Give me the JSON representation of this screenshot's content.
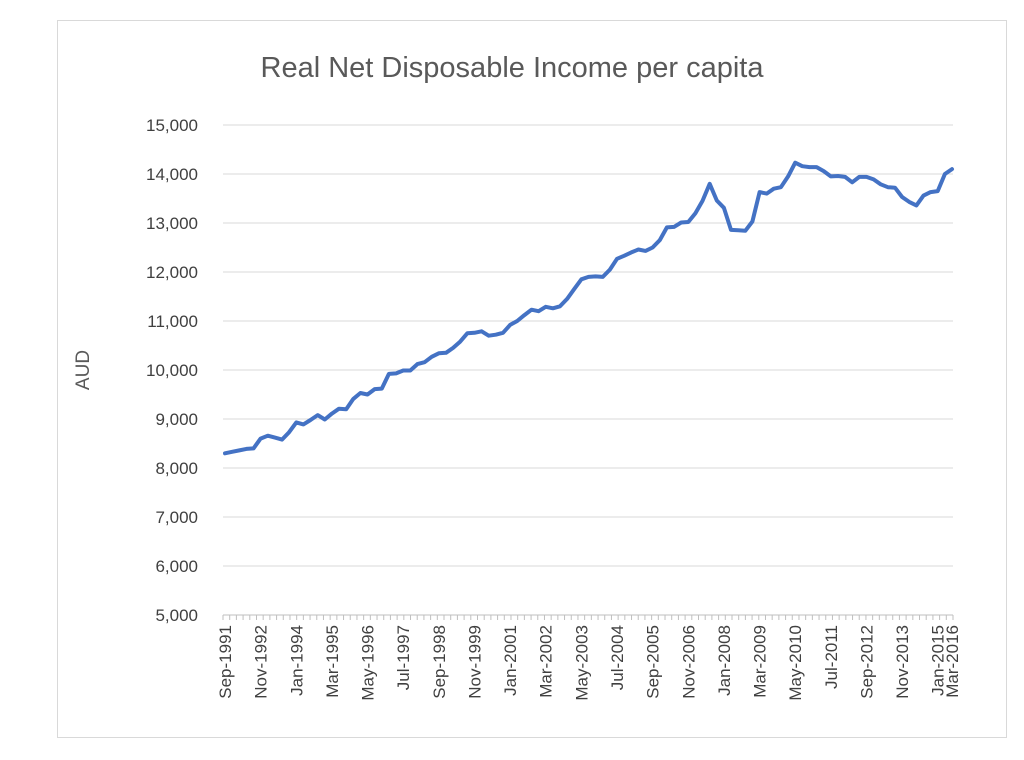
{
  "chart_data": {
    "type": "line",
    "title": "Real Net Disposable Income per capita",
    "ylabel": "AUD",
    "xlabel": "",
    "ylim": [
      5000,
      15000
    ],
    "y_ticks": [
      "5,000",
      "6,000",
      "7,000",
      "8,000",
      "9,000",
      "10,000",
      "11,000",
      "12,000",
      "13,000",
      "14,000",
      "15,000"
    ],
    "y_tick_values": [
      5000,
      6000,
      7000,
      8000,
      9000,
      10000,
      11000,
      12000,
      13000,
      14000,
      15000
    ],
    "x_tick_labels": [
      "Sep-1991",
      "Nov-1992",
      "Jan-1994",
      "Mar-1995",
      "May-1996",
      "Jul-1997",
      "Sep-1998",
      "Nov-1999",
      "Jan-2001",
      "Mar-2002",
      "May-2003",
      "Jul-2004",
      "Sep-2005",
      "Nov-2006",
      "Jan-2008",
      "Mar-2009",
      "May-2010",
      "Jul-2011",
      "Sep-2012",
      "Nov-2013",
      "Jan-2015",
      "Mar-2016"
    ],
    "grid": true,
    "legend": "none",
    "color": "#4472C4",
    "series": [
      {
        "values": [
          8300,
          8330,
          8360,
          8390,
          8400,
          8600,
          8660,
          8620,
          8580,
          8730,
          8930,
          8890,
          8980,
          9080,
          8990,
          9110,
          9210,
          9200,
          9410,
          9530,
          9500,
          9610,
          9620,
          9920,
          9930,
          9990,
          9990,
          10120,
          10160,
          10270,
          10340,
          10350,
          10450,
          10580,
          10750,
          10760,
          10790,
          10700,
          10720,
          10760,
          10920,
          11000,
          11120,
          11230,
          11200,
          11290,
          11260,
          11300,
          11450,
          11650,
          11850,
          11900,
          11910,
          11900,
          12050,
          12270,
          12330,
          12400,
          12460,
          12430,
          12500,
          12650,
          12910,
          12920,
          13010,
          13020,
          13200,
          13450,
          13800,
          13460,
          13310,
          12860,
          12850,
          12840,
          13030,
          13630,
          13600,
          13700,
          13730,
          13950,
          14230,
          14160,
          14140,
          14140,
          14060,
          13950,
          13960,
          13940,
          13830,
          13940,
          13940,
          13890,
          13790,
          13730,
          13720,
          13530,
          13430,
          13360,
          13560,
          13630,
          13650,
          14000,
          14100
        ]
      }
    ]
  }
}
